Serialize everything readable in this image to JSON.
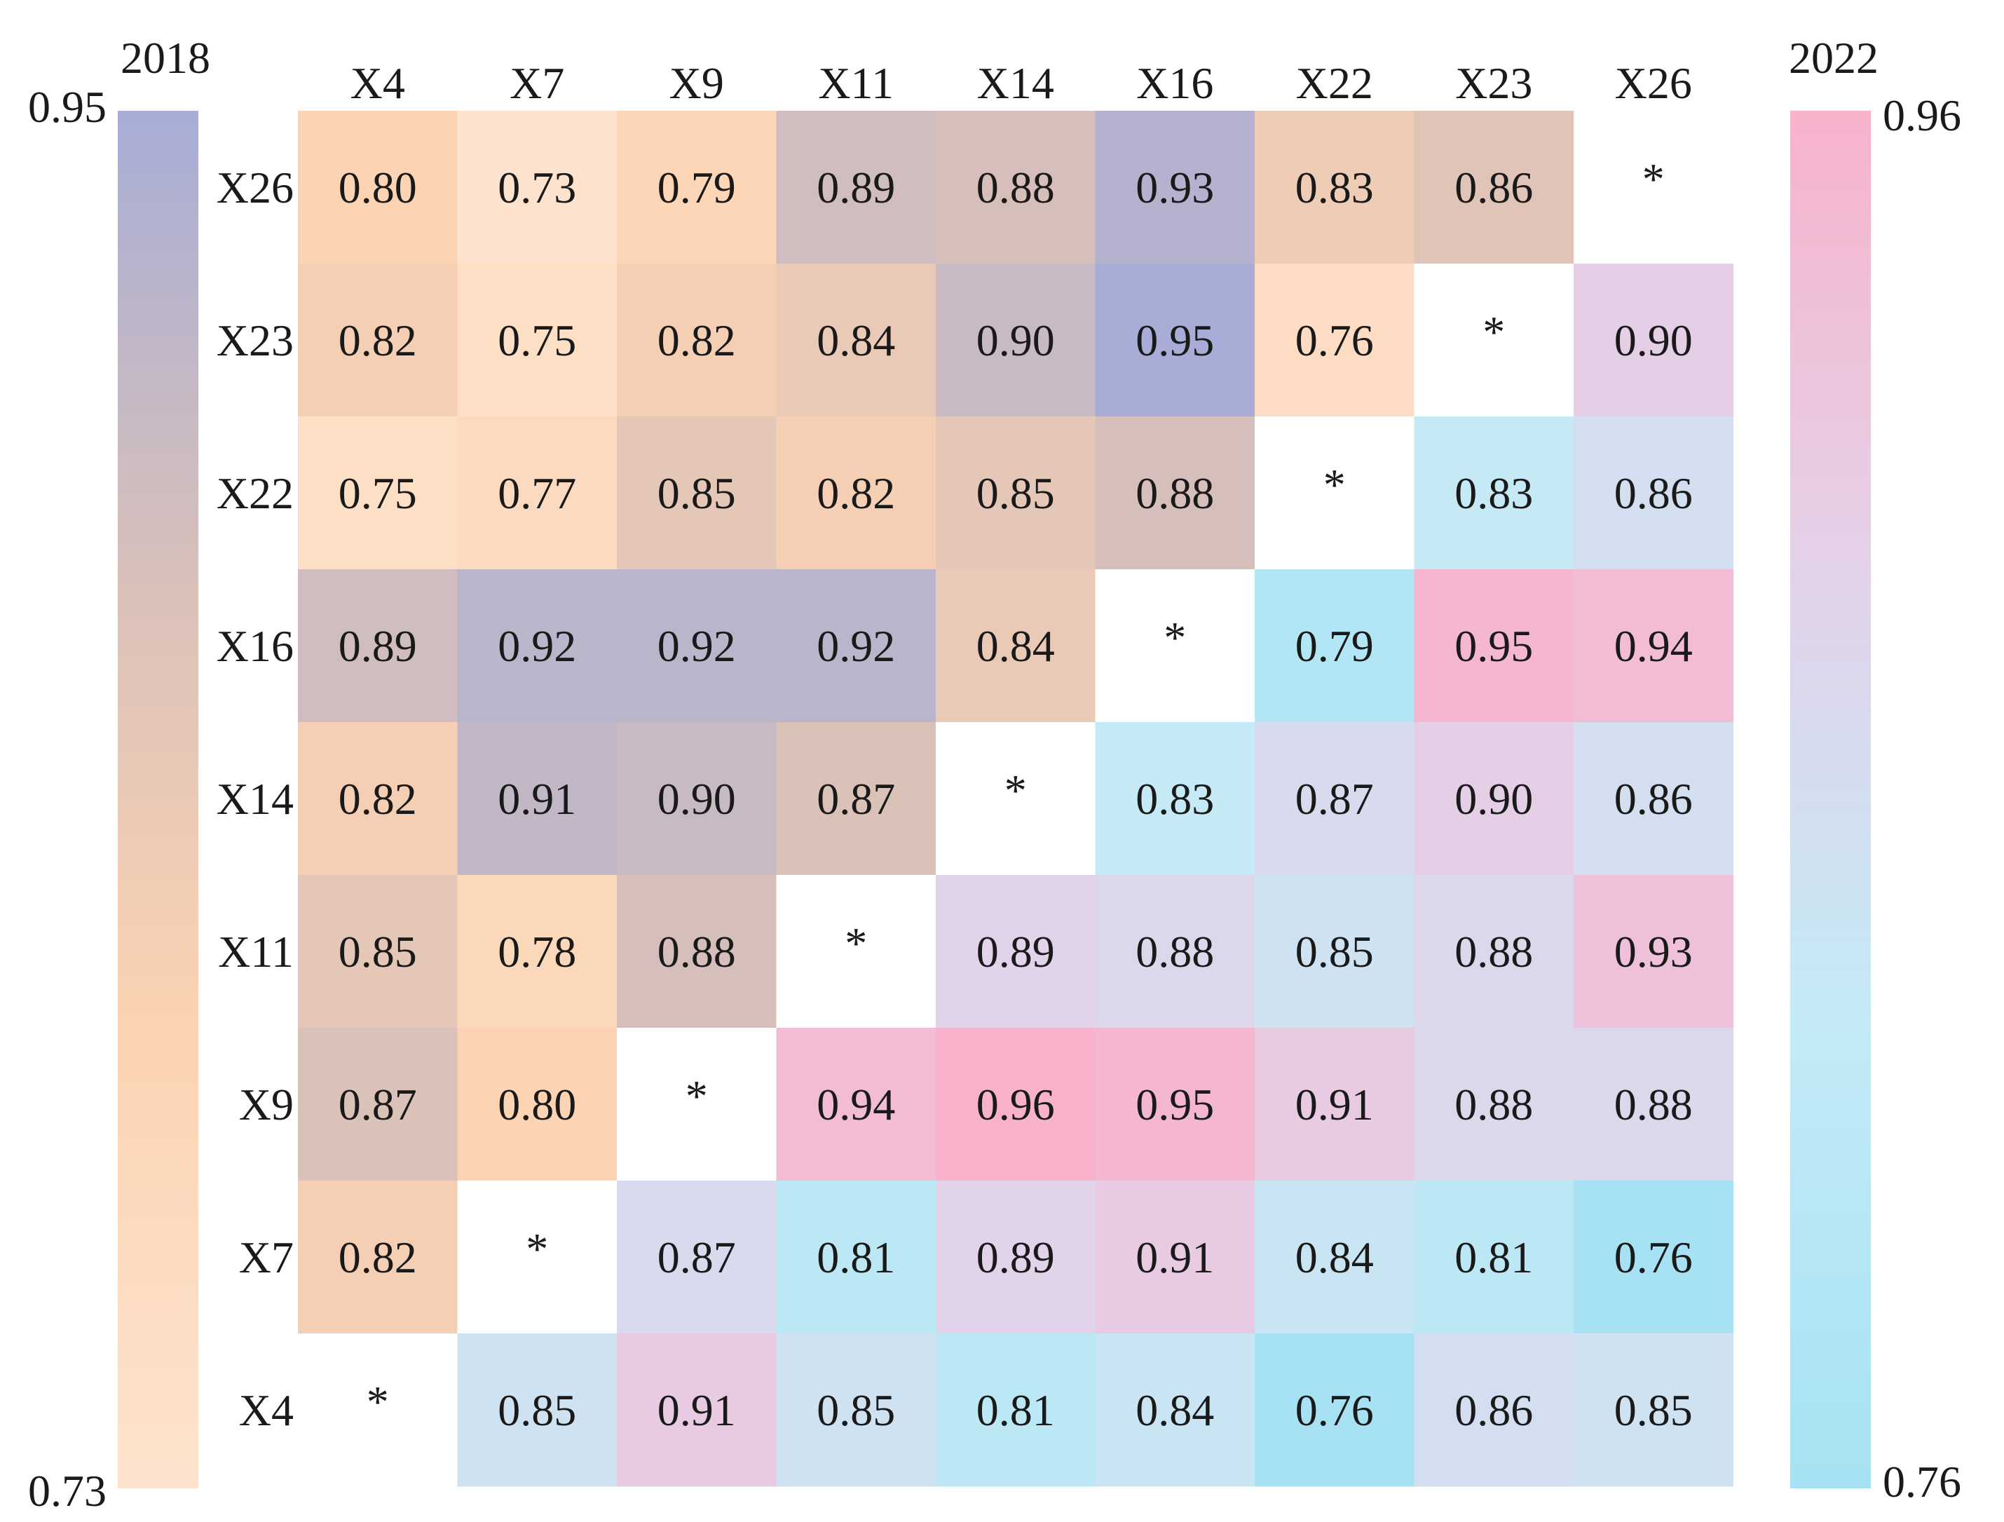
{
  "chart_data": {
    "type": "heatmap",
    "title": "",
    "columns": [
      "X4",
      "X7",
      "X9",
      "X11",
      "X14",
      "X16",
      "X22",
      "X23",
      "X26"
    ],
    "rows": [
      "X26",
      "X23",
      "X22",
      "X16",
      "X14",
      "X11",
      "X9",
      "X7",
      "X4"
    ],
    "cells": [
      [
        "0.80",
        "0.73",
        "0.79",
        "0.89",
        "0.88",
        "0.93",
        "0.83",
        "0.86",
        "*"
      ],
      [
        "0.82",
        "0.75",
        "0.82",
        "0.84",
        "0.90",
        "0.95",
        "0.76",
        "*",
        "0.90"
      ],
      [
        "0.75",
        "0.77",
        "0.85",
        "0.82",
        "0.85",
        "0.88",
        "*",
        "0.83",
        "0.86"
      ],
      [
        "0.89",
        "0.92",
        "0.92",
        "0.92",
        "0.84",
        "*",
        "0.79",
        "0.95",
        "0.94"
      ],
      [
        "0.82",
        "0.91",
        "0.90",
        "0.87",
        "*",
        "0.83",
        "0.87",
        "0.90",
        "0.86"
      ],
      [
        "0.85",
        "0.78",
        "0.88",
        "*",
        "0.89",
        "0.88",
        "0.85",
        "0.88",
        "0.93"
      ],
      [
        "0.87",
        "0.80",
        "*",
        "0.94",
        "0.96",
        "0.95",
        "0.91",
        "0.88",
        "0.88"
      ],
      [
        "0.82",
        "*",
        "0.87",
        "0.81",
        "0.89",
        "0.91",
        "0.84",
        "0.81",
        "0.76"
      ],
      [
        "*",
        "0.85",
        "0.91",
        "0.85",
        "0.81",
        "0.84",
        "0.76",
        "0.86",
        "0.85"
      ]
    ],
    "upper_triangle": {
      "year": "2018",
      "scale_max_label": "0.95",
      "scale_min_label": "0.73",
      "range": [
        0.73,
        0.95
      ],
      "colors": [
        "#fde3ce",
        "#fcd3b2",
        "#d8c0ba",
        "#a7add6"
      ]
    },
    "lower_triangle": {
      "year": "2022",
      "scale_max_label": "0.96",
      "scale_min_label": "0.76",
      "range": [
        0.76,
        0.96
      ],
      "colors": [
        "#a6e2f3",
        "#c3eaf6",
        "#e3d2e9",
        "#f8b2cc"
      ]
    },
    "diagonal_marker": "*",
    "grid": false
  }
}
